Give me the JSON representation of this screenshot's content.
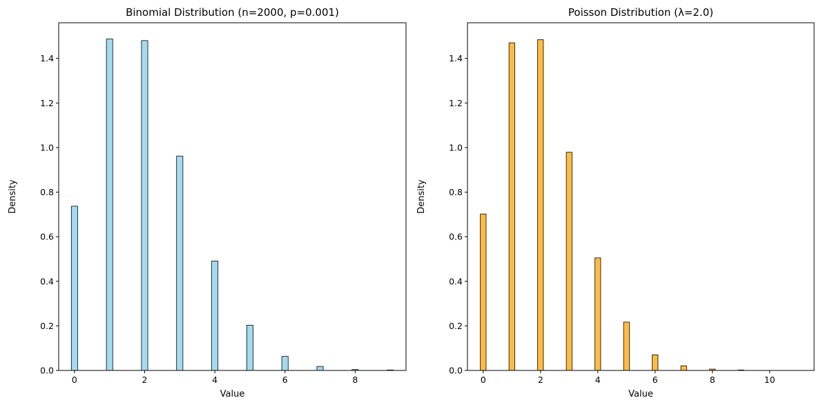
{
  "chart_data": [
    {
      "type": "bar",
      "title": "Binomial Distribution (n=2000, p=0.001)",
      "xlabel": "Value",
      "ylabel": "Density",
      "xlim": [
        -0.45,
        9.45
      ],
      "ylim": [
        0,
        1.56
      ],
      "xticks": [
        0,
        2,
        4,
        6,
        8
      ],
      "yticks": [
        0.0,
        0.2,
        0.4,
        0.6,
        0.8,
        1.0,
        1.2,
        1.4
      ],
      "bar_width": 0.18,
      "x": [
        0,
        1,
        2,
        3,
        4,
        5,
        6,
        7,
        8,
        9
      ],
      "values": [
        0.737,
        1.487,
        1.48,
        0.962,
        0.491,
        0.203,
        0.063,
        0.018,
        0.004,
        0.002
      ],
      "color": "#87ceeb",
      "edgecolor": "#000000"
    },
    {
      "type": "bar",
      "title": "Poisson Distribution (λ=2.0)",
      "xlabel": "Value",
      "ylabel": "Density",
      "xlim": [
        -0.55,
        11.55
      ],
      "ylim": [
        0,
        1.56
      ],
      "xticks": [
        0,
        2,
        4,
        6,
        8,
        10
      ],
      "yticks": [
        0.0,
        0.2,
        0.4,
        0.6,
        0.8,
        1.0,
        1.2,
        1.4
      ],
      "bar_width": 0.2,
      "x": [
        0,
        1,
        2,
        3,
        4,
        5,
        6,
        7,
        8,
        9,
        10,
        11
      ],
      "values": [
        0.702,
        1.47,
        1.484,
        0.979,
        0.505,
        0.217,
        0.07,
        0.021,
        0.006,
        0.002,
        0.0,
        0.0
      ],
      "color": "#ffa500",
      "edgecolor": "#000000"
    }
  ]
}
